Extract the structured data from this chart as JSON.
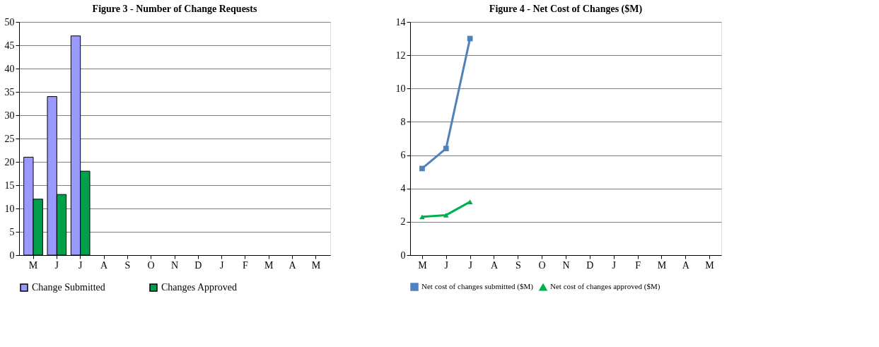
{
  "chart_data": [
    {
      "type": "bar",
      "title": "Figure 3 - Number of Change Requests",
      "categories": [
        "M",
        "J",
        "J",
        "A",
        "S",
        "O",
        "N",
        "D",
        "J",
        "F",
        "M",
        "A",
        "M"
      ],
      "series": [
        {
          "name": "Change Submitted",
          "color": "#9999ff",
          "values": [
            21,
            34,
            47,
            null,
            null,
            null,
            null,
            null,
            null,
            null,
            null,
            null,
            null
          ]
        },
        {
          "name": "Changes Approved",
          "color": "#00a04a",
          "values": [
            12,
            13,
            18,
            null,
            null,
            null,
            null,
            null,
            null,
            null,
            null,
            null,
            null
          ]
        }
      ],
      "ylim": [
        0,
        50
      ],
      "yticks": [
        0,
        5,
        10,
        15,
        20,
        25,
        30,
        35,
        40,
        45,
        50
      ],
      "grid": "y",
      "legend": "bottom"
    },
    {
      "type": "line",
      "title": "Figure 4 - Net Cost of Changes ($M)",
      "categories": [
        "M",
        "J",
        "J",
        "A",
        "S",
        "O",
        "N",
        "D",
        "J",
        "F",
        "M",
        "A",
        "M"
      ],
      "series": [
        {
          "name": "Net cost of changes submitted ($M)",
          "color": "#4f81bd",
          "marker": "square",
          "values": [
            5.2,
            6.4,
            13.0,
            null,
            null,
            null,
            null,
            null,
            null,
            null,
            null,
            null,
            null
          ]
        },
        {
          "name": "Net cost of changes approved ($M)",
          "color": "#00b050",
          "marker": "triangle",
          "values": [
            2.3,
            2.4,
            3.2,
            null,
            null,
            null,
            null,
            null,
            null,
            null,
            null,
            null,
            null
          ]
        }
      ],
      "ylim": [
        0,
        14
      ],
      "yticks": [
        0,
        2,
        4,
        6,
        8,
        10,
        12,
        14
      ],
      "grid": "y",
      "legend": "bottom"
    }
  ]
}
